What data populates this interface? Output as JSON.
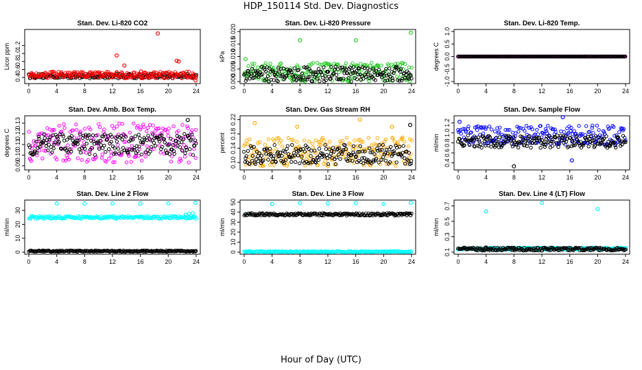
{
  "title": "HDP_150114 Std. Dev. Diagnostics",
  "xlabel": "Hour of Day (UTC)",
  "chart_data": [
    {
      "type": "scatter",
      "title": "Stan. Dev. Li-820 CO2",
      "ylabel": "Licor ppm",
      "xlim": [
        0,
        24
      ],
      "ylim": [
        0.3,
        1.55
      ],
      "xticks": [
        "0",
        "4",
        "8",
        "12",
        "16",
        "20",
        "24"
      ],
      "yticks": [
        "0.4",
        "0.6",
        "0.8",
        "1.0",
        "1.2"
      ],
      "ytick_values": [
        0.4,
        0.6,
        0.8,
        1.0,
        1.2
      ],
      "series": [
        {
          "color": "#000000",
          "band": [
            0.38,
            0.5
          ]
        },
        {
          "color": "#ff0000",
          "band": [
            0.38,
            0.55
          ],
          "outliers": [
            [
              12.6,
              0.95
            ],
            [
              13.7,
              0.7
            ],
            [
              16.1,
              0.55
            ],
            [
              18.5,
              1.5
            ],
            [
              21.2,
              0.82
            ],
            [
              21.5,
              0.8
            ],
            [
              17.9,
              0.45
            ],
            [
              23.9,
              0.33
            ]
          ]
        }
      ]
    },
    {
      "type": "scatter",
      "title": "Stan. Dev. Li-820 Pressure",
      "ylabel": "kPa",
      "xlim": [
        0,
        24
      ],
      "ylim": [
        0,
        0.02
      ],
      "xticks": [
        "0",
        "4",
        "8",
        "12",
        "16",
        "20",
        "24"
      ],
      "yticks": [
        "0.000",
        "0.005",
        "0.010",
        "0.015",
        "0.020"
      ],
      "ytick_values": [
        0,
        0.005,
        0.01,
        0.015,
        0.02
      ],
      "series": [
        {
          "color": "#22cc22",
          "band": [
            0,
            0.0075
          ],
          "outliers": [
            [
              8,
              0.0165
            ],
            [
              16,
              0.0165
            ],
            [
              23.9,
              0.0195
            ],
            [
              0.2,
              0.009
            ]
          ]
        },
        {
          "color": "#000000",
          "band": [
            0,
            0.006
          ]
        }
      ]
    },
    {
      "type": "scatter",
      "title": "Stan. Dev. Li-820 Temp.",
      "ylabel": "degrees C",
      "xlim": [
        0,
        24
      ],
      "ylim": [
        -1,
        1
      ],
      "xticks": [
        "0",
        "4",
        "8",
        "12",
        "16",
        "20",
        "24"
      ],
      "yticks": [
        "-1.0",
        "-0.5",
        "0.0",
        "0.5",
        "1.0"
      ],
      "ytick_values": [
        -1,
        -0.5,
        0,
        0.5,
        1
      ],
      "series": [
        {
          "color": "#ff00ff",
          "band": [
            0,
            0
          ]
        },
        {
          "color": "#000000",
          "band": [
            0,
            0
          ]
        }
      ]
    },
    {
      "type": "scatter",
      "title": "Stan. Dev. Amb. Box Temp.",
      "ylabel": "degrees C",
      "xlim": [
        0,
        24
      ],
      "ylim": [
        0.088,
        0.135
      ],
      "xticks": [
        "0",
        "4",
        "8",
        "12",
        "16",
        "20",
        "24"
      ],
      "yticks": [
        "0.09",
        "0.10",
        "0.11",
        "0.12",
        "0.13"
      ],
      "ytick_values": [
        0.09,
        0.1,
        0.11,
        0.12,
        0.13
      ],
      "series": [
        {
          "color": "#ff00ff",
          "band": [
            0.093,
            0.13
          ]
        },
        {
          "color": "#000000",
          "band": [
            0.1,
            0.12
          ],
          "outliers": [
            [
              22.8,
              0.133
            ]
          ]
        }
      ]
    },
    {
      "type": "scatter",
      "title": "Stan. Dev. Gas Stream RH",
      "ylabel": "percent",
      "xlim": [
        0,
        24
      ],
      "ylim": [
        0.085,
        0.225
      ],
      "xticks": [
        "0",
        "4",
        "8",
        "12",
        "16",
        "20",
        "24"
      ],
      "yticks": [
        "0.10",
        "0.14",
        "0.18",
        "0.22"
      ],
      "ytick_values": [
        0.1,
        0.14,
        0.18,
        0.22
      ],
      "series": [
        {
          "color": "#ffaa00",
          "band": [
            0.09,
            0.17
          ],
          "outliers": [
            [
              1.5,
              0.21
            ],
            [
              7.6,
              0.2
            ],
            [
              16.6,
              0.22
            ],
            [
              21.2,
              0.2
            ]
          ]
        },
        {
          "color": "#000000",
          "band": [
            0.095,
            0.15
          ],
          "outliers": [
            [
              23.8,
              0.205
            ]
          ]
        }
      ]
    },
    {
      "type": "scatter",
      "title": "Stan. Dev. Sample Flow",
      "ylabel": "ml/min",
      "xlim": [
        0,
        24
      ],
      "ylim": [
        0.3,
        1.3
      ],
      "xticks": [
        "0",
        "4",
        "8",
        "12",
        "16",
        "20",
        "24"
      ],
      "yticks": [
        "0.4",
        "0.6",
        "0.8",
        "1.0",
        "1.2"
      ],
      "ytick_values": [
        0.4,
        0.6,
        0.8,
        1.0,
        1.2
      ],
      "series": [
        {
          "color": "#0000ff",
          "band": [
            0.75,
            1.15
          ],
          "outliers": [
            [
              15,
              1.35
            ],
            [
              16.3,
              0.45
            ],
            [
              0.2,
              1.22
            ]
          ]
        },
        {
          "color": "#000000",
          "band": [
            0.7,
            0.95
          ],
          "outliers": [
            [
              8,
              0.33
            ]
          ]
        }
      ]
    },
    {
      "type": "scatter",
      "title": "Stan. Dev. Line 2 Flow",
      "ylabel": "ml/min",
      "xlim": [
        0,
        24
      ],
      "ylim": [
        0,
        36
      ],
      "xticks": [
        "0",
        "4",
        "8",
        "12",
        "16",
        "20",
        "24"
      ],
      "yticks": [
        "0",
        "10",
        "20",
        "30"
      ],
      "ytick_values": [
        0,
        10,
        20,
        30
      ],
      "series": [
        {
          "color": "#00ffff",
          "band": [
            24,
            26
          ],
          "outliers": [
            [
              4,
              35
            ],
            [
              8,
              35
            ],
            [
              12,
              35
            ],
            [
              16,
              35
            ],
            [
              20,
              35
            ],
            [
              23.9,
              35.5
            ],
            [
              22.5,
              27
            ],
            [
              23,
              27.5
            ],
            [
              23.5,
              28
            ]
          ]
        },
        {
          "color": "#000000",
          "band": [
            0.3,
            1.2
          ]
        }
      ]
    },
    {
      "type": "scatter",
      "title": "Stan. Dev. Line 3 Flow",
      "ylabel": "ml/min",
      "xlim": [
        0,
        24
      ],
      "ylim": [
        0,
        50
      ],
      "xticks": [
        "0",
        "4",
        "8",
        "12",
        "16",
        "20",
        "24"
      ],
      "yticks": [
        "0",
        "10",
        "20",
        "30",
        "40",
        "50"
      ],
      "ytick_values": [
        0,
        10,
        20,
        30,
        40,
        50
      ],
      "series": [
        {
          "color": "#00ffff",
          "band": [
            0,
            1
          ],
          "outliers": [
            [
              4,
              48
            ],
            [
              8,
              49
            ],
            [
              12,
              49
            ],
            [
              16,
              49
            ],
            [
              20,
              48
            ],
            [
              23.9,
              49.5
            ],
            [
              0.2,
              38
            ]
          ]
        },
        {
          "color": "#000000",
          "band": [
            36.5,
            39
          ]
        }
      ]
    },
    {
      "type": "scatter",
      "title": "Stan. Dev. Line 4 (LT) Flow",
      "ylabel": "ml/min",
      "xlim": [
        0,
        24
      ],
      "ylim": [
        0.1,
        0.75
      ],
      "xticks": [
        "0",
        "4",
        "8",
        "12",
        "16",
        "20",
        "24"
      ],
      "yticks": [
        "0.1",
        "0.3",
        "0.5",
        "0.7"
      ],
      "ytick_values": [
        0.1,
        0.3,
        0.5,
        0.7
      ],
      "series": [
        {
          "color": "#00ffff",
          "band": [
            0.13,
            0.16
          ],
          "outliers": [
            [
              4,
              0.63
            ],
            [
              12,
              0.74
            ],
            [
              20,
              0.66
            ]
          ]
        },
        {
          "color": "#000000",
          "band": [
            0.12,
            0.16
          ],
          "outliers": [
            [
              4,
              0.16
            ],
            [
              8,
              0.155
            ]
          ]
        }
      ]
    }
  ]
}
